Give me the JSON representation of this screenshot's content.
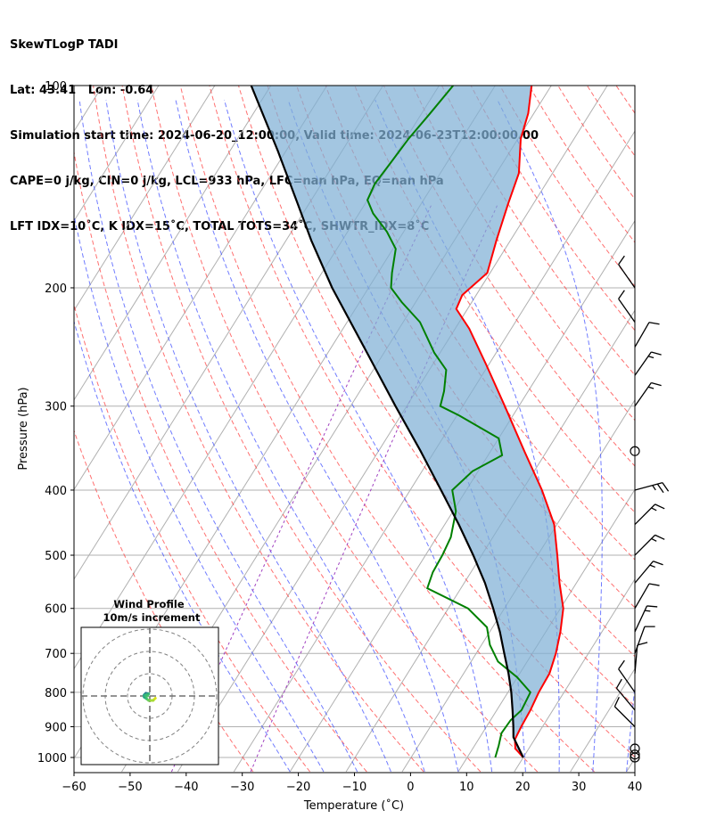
{
  "header": {
    "line1": "SkewTLogP TADI",
    "line2": "Lat: 43.41   Lon: -0.64",
    "line3": "Simulation start time: 2024-06-20_12:00:00, Valid time: 2024-06-23T12:00:00.00",
    "line4": "CAPE=0 j/kg, CIN=0 j/kg, LCL=933 hPa, LFC=nan hPa, EQ=nan hPa",
    "line5": "LFT IDX=10˚C, K IDX=15˚C, TOTAL TOTS=34˚C, SHWTR_IDX=8˚C"
  },
  "chart_data": {
    "type": "line",
    "subtype": "skew-t log-p",
    "xlabel": "Temperature (˚C)",
    "ylabel": "Pressure (hPa)",
    "xlim": [
      -60,
      40
    ],
    "ylim": [
      1050,
      100
    ],
    "x_ticks": [
      -60,
      -50,
      -40,
      -30,
      -20,
      -10,
      0,
      10,
      20,
      30,
      40
    ],
    "x_tick_labels": [
      "−60",
      "−50",
      "−40",
      "−30",
      "−20",
      "−10",
      "0",
      "10",
      "20",
      "30",
      "40"
    ],
    "y_ticks": [
      1000,
      900,
      800,
      700,
      600,
      500,
      400,
      300,
      200,
      100
    ],
    "y_tick_labels": [
      "1000",
      "900",
      "800",
      "700",
      "600",
      "500",
      "400",
      "300",
      "200",
      "100"
    ],
    "grid": true,
    "skew_deg_per_decade": 75,
    "series": [
      {
        "name": "Temperature",
        "color": "#ff0000",
        "points": [
          {
            "p": 1000,
            "t": 20.0
          },
          {
            "p": 970,
            "t": 17.6
          },
          {
            "p": 940,
            "t": 16.5
          },
          {
            "p": 900,
            "t": 16.2
          },
          {
            "p": 850,
            "t": 16.0
          },
          {
            "p": 800,
            "t": 15.5
          },
          {
            "p": 750,
            "t": 15.3
          },
          {
            "p": 700,
            "t": 14.2
          },
          {
            "p": 650,
            "t": 12.6
          },
          {
            "p": 600,
            "t": 10.5
          },
          {
            "p": 550,
            "t": 7.0
          },
          {
            "p": 500,
            "t": 3.5
          },
          {
            "p": 450,
            "t": -0.5
          },
          {
            "p": 400,
            "t": -6.5
          },
          {
            "p": 350,
            "t": -14.0
          },
          {
            "p": 300,
            "t": -22.5
          },
          {
            "p": 260,
            "t": -30.5
          },
          {
            "p": 230,
            "t": -37.5
          },
          {
            "p": 215,
            "t": -42.0
          },
          {
            "p": 205,
            "t": -42.5
          },
          {
            "p": 190,
            "t": -40.5
          },
          {
            "p": 170,
            "t": -42.5
          },
          {
            "p": 150,
            "t": -44.5
          },
          {
            "p": 135,
            "t": -46.0
          },
          {
            "p": 120,
            "t": -49.5
          },
          {
            "p": 110,
            "t": -51.0
          },
          {
            "p": 100,
            "t": -53.5
          }
        ]
      },
      {
        "name": "Dewpoint",
        "color": "#008000",
        "points": [
          {
            "p": 1000,
            "t": 15.0
          },
          {
            "p": 960,
            "t": 14.3
          },
          {
            "p": 920,
            "t": 13.4
          },
          {
            "p": 880,
            "t": 13.6
          },
          {
            "p": 850,
            "t": 14.4
          },
          {
            "p": 800,
            "t": 14.0
          },
          {
            "p": 760,
            "t": 10.0
          },
          {
            "p": 720,
            "t": 4.8
          },
          {
            "p": 680,
            "t": 1.5
          },
          {
            "p": 640,
            "t": -1.0
          },
          {
            "p": 600,
            "t": -6.5
          },
          {
            "p": 560,
            "t": -16.0
          },
          {
            "p": 530,
            "t": -16.8
          },
          {
            "p": 500,
            "t": -17.0
          },
          {
            "p": 470,
            "t": -17.5
          },
          {
            "p": 430,
            "t": -19.5
          },
          {
            "p": 400,
            "t": -22.5
          },
          {
            "p": 375,
            "t": -21.0
          },
          {
            "p": 355,
            "t": -17.5
          },
          {
            "p": 335,
            "t": -20.0
          },
          {
            "p": 310,
            "t": -29.5
          },
          {
            "p": 300,
            "t": -34.0
          },
          {
            "p": 285,
            "t": -35.0
          },
          {
            "p": 265,
            "t": -37.0
          },
          {
            "p": 250,
            "t": -41.0
          },
          {
            "p": 225,
            "t": -47.0
          },
          {
            "p": 210,
            "t": -52.5
          },
          {
            "p": 200,
            "t": -56.0
          },
          {
            "p": 190,
            "t": -57.5
          },
          {
            "p": 175,
            "t": -59.5
          },
          {
            "p": 165,
            "t": -63.0
          },
          {
            "p": 155,
            "t": -67.5
          },
          {
            "p": 148,
            "t": -70.0
          },
          {
            "p": 140,
            "t": -70.5
          },
          {
            "p": 130,
            "t": -70.0
          },
          {
            "p": 120,
            "t": -69.5
          },
          {
            "p": 110,
            "t": -68.5
          },
          {
            "p": 100,
            "t": -67.5
          }
        ]
      },
      {
        "name": "Parcel",
        "color": "#000000",
        "points": [
          {
            "p": 1000,
            "t": 20.0
          },
          {
            "p": 933,
            "t": 16.0
          },
          {
            "p": 900,
            "t": 14.8
          },
          {
            "p": 850,
            "t": 12.8
          },
          {
            "p": 800,
            "t": 10.6
          },
          {
            "p": 750,
            "t": 8.0
          },
          {
            "p": 700,
            "t": 5.0
          },
          {
            "p": 650,
            "t": 1.8
          },
          {
            "p": 600,
            "t": -2.0
          },
          {
            "p": 550,
            "t": -6.3
          },
          {
            "p": 500,
            "t": -11.5
          },
          {
            "p": 450,
            "t": -17.5
          },
          {
            "p": 400,
            "t": -24.5
          },
          {
            "p": 350,
            "t": -32.5
          },
          {
            "p": 300,
            "t": -42.0
          },
          {
            "p": 250,
            "t": -53.0
          },
          {
            "p": 200,
            "t": -66.5
          },
          {
            "p": 170,
            "t": -75.5
          },
          {
            "p": 150,
            "t": -82.0
          },
          {
            "p": 125,
            "t": -91.5
          },
          {
            "p": 100,
            "t": -103.5
          }
        ]
      }
    ],
    "wind_barbs": [
      {
        "p": 1000,
        "calm": true
      },
      {
        "p": 990,
        "calm": true
      },
      {
        "p": 970,
        "calm": true
      },
      {
        "p": 900,
        "dir": 315,
        "speed": 10
      },
      {
        "p": 850,
        "dir": 320,
        "speed": 10
      },
      {
        "p": 800,
        "dir": 325,
        "speed": 10
      },
      {
        "p": 750,
        "dir": 5,
        "speed": 10
      },
      {
        "p": 700,
        "dir": 20,
        "speed": 10
      },
      {
        "p": 650,
        "dir": 25,
        "speed": 15
      },
      {
        "p": 600,
        "dir": 30,
        "speed": 10
      },
      {
        "p": 550,
        "dir": 40,
        "speed": 15
      },
      {
        "p": 500,
        "dir": 45,
        "speed": 15
      },
      {
        "p": 450,
        "dir": 45,
        "speed": 15
      },
      {
        "p": 400,
        "dir": 75,
        "speed": 25
      },
      {
        "p": 350,
        "calm": true
      },
      {
        "p": 300,
        "dir": 35,
        "speed": 15
      },
      {
        "p": 270,
        "dir": 35,
        "speed": 15
      },
      {
        "p": 245,
        "dir": 30,
        "speed": 10
      },
      {
        "p": 225,
        "dir": 325,
        "speed": 10
      },
      {
        "p": 200,
        "dir": 325,
        "speed": 10
      }
    ],
    "hodograph": {
      "title": "Wind Profile",
      "subtitle": "10m/s increment",
      "ring_increment_ms": 10,
      "points": [
        {
          "u": 2.5,
          "v": -1.0
        },
        {
          "u": 1.5,
          "v": -2.0
        },
        {
          "u": -0.5,
          "v": -2.0
        },
        {
          "u": -1.5,
          "v": -1.2
        },
        {
          "u": -2.5,
          "v": -0.5
        },
        {
          "u": -2.5,
          "v": 0.5
        },
        {
          "u": -1.8,
          "v": 1.2
        },
        {
          "u": -0.5,
          "v": 1.0
        },
        {
          "u": -1.0,
          "v": 0.0
        },
        {
          "u": -2.0,
          "v": 0.2
        },
        {
          "u": -1.5,
          "v": 0.6
        }
      ]
    }
  }
}
